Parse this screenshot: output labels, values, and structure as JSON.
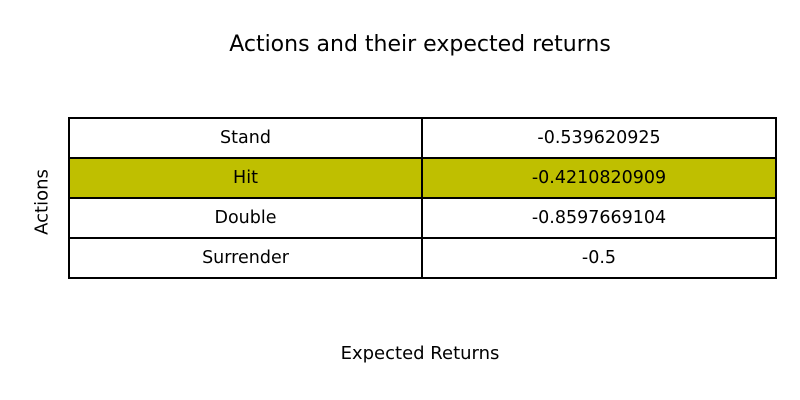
{
  "chart_data": {
    "type": "table",
    "title": "Actions and their expected returns",
    "xlabel": "Expected Returns",
    "ylabel": "Actions",
    "columns": [
      "Actions",
      "Expected Returns"
    ],
    "rows": [
      {
        "action": "Stand",
        "value": "-0.539620925"
      },
      {
        "action": "Hit",
        "value": "-0.4210820909",
        "highlighted": true
      },
      {
        "action": "Double",
        "value": "-0.8597669104"
      },
      {
        "action": "Surrender",
        "value": "-0.5"
      }
    ],
    "highlight_color": "#bfbf00",
    "cell_color": "#ffffff",
    "border_color": "#000000"
  }
}
